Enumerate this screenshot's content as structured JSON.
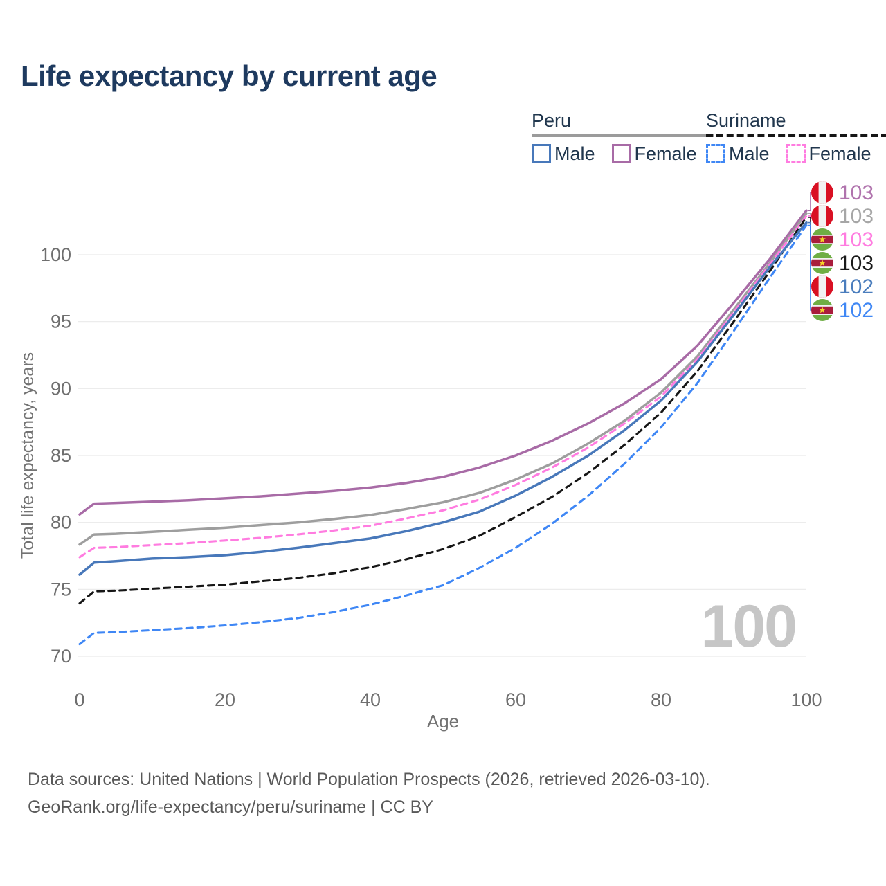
{
  "title": "Life expectancy by current age",
  "legend": {
    "groups": [
      {
        "label": "Peru",
        "underline_color": "#9b9b9b",
        "underline_style": "solid",
        "items": [
          {
            "label": "Male",
            "color": "#4878ba",
            "style": "solid"
          },
          {
            "label": "Female",
            "color": "#a86ba6",
            "style": "solid"
          }
        ]
      },
      {
        "label": "Suriname",
        "underline_color": "#161616",
        "underline_style": "dashed",
        "items": [
          {
            "label": "Male",
            "color": "#3f87f5",
            "style": "dashed"
          },
          {
            "label": "Female",
            "color": "#ff7ce0",
            "style": "dashed"
          }
        ]
      }
    ]
  },
  "watermark": {
    "value": "100",
    "color": "#c6c6c6"
  },
  "footer": {
    "line1": "Data sources: United Nations | World Population Prospects (2026, retrieved 2026-03-10).",
    "line2": "GeoRank.org/life-expectancy/peru/suriname | CC BY"
  },
  "chart_data": {
    "type": "line",
    "title": "Life expectancy by current age",
    "xlabel": "Age",
    "ylabel": "Total life expectancy, years",
    "xlim": [
      0,
      100
    ],
    "ylim": [
      70,
      103.5
    ],
    "xticks": [
      0,
      20,
      40,
      60,
      80,
      100
    ],
    "yticks": [
      70,
      75,
      80,
      85,
      90,
      95,
      100
    ],
    "grid": true,
    "legend_position": "top-right",
    "x": [
      0,
      2,
      5,
      10,
      15,
      20,
      25,
      30,
      35,
      40,
      45,
      50,
      55,
      60,
      65,
      70,
      75,
      80,
      85,
      90,
      95,
      100
    ],
    "series": [
      {
        "name": "Peru Female",
        "country": "Peru",
        "sex": "Female",
        "flag": "peru",
        "style": "solid",
        "color": "#a86ba6",
        "end_label": "103",
        "label_color": "#b073ad",
        "values": [
          80.6,
          81.4,
          81.45,
          81.55,
          81.65,
          81.8,
          81.95,
          82.15,
          82.35,
          82.6,
          82.95,
          83.4,
          84.1,
          85.0,
          86.1,
          87.4,
          88.9,
          90.7,
          93.2,
          96.4,
          99.7,
          103.3
        ]
      },
      {
        "name": "Peru",
        "country": "Peru",
        "sex": "Both",
        "flag": "peru",
        "style": "solid",
        "color": "#9e9e9e",
        "end_label": "103",
        "label_color": "#a6a6a6",
        "values": [
          78.35,
          79.1,
          79.15,
          79.3,
          79.45,
          79.6,
          79.8,
          80.0,
          80.25,
          80.55,
          81.0,
          81.5,
          82.2,
          83.2,
          84.4,
          85.9,
          87.6,
          89.7,
          92.4,
          95.9,
          99.4,
          103.1
        ]
      },
      {
        "name": "Suriname Female",
        "country": "Suriname",
        "sex": "Female",
        "flag": "suriname",
        "style": "dashed",
        "color": "#ff7ce0",
        "end_label": "103",
        "label_color": "#ff7ce0",
        "values": [
          77.4,
          78.1,
          78.15,
          78.3,
          78.45,
          78.65,
          78.85,
          79.1,
          79.4,
          79.75,
          80.3,
          80.9,
          81.7,
          82.8,
          84.1,
          85.6,
          87.4,
          89.4,
          92.2,
          95.7,
          99.3,
          102.9
        ]
      },
      {
        "name": "Suriname",
        "country": "Suriname",
        "sex": "Both",
        "flag": "suriname",
        "style": "dashed",
        "color": "#161616",
        "end_label": "103",
        "label_color": "#1a1a1a",
        "values": [
          73.95,
          74.85,
          74.9,
          75.05,
          75.2,
          75.35,
          75.6,
          75.85,
          76.2,
          76.65,
          77.25,
          78.0,
          79.0,
          80.4,
          81.9,
          83.7,
          85.8,
          88.2,
          91.3,
          95.0,
          98.8,
          102.8
        ]
      },
      {
        "name": "Peru Male",
        "country": "Peru",
        "sex": "Male",
        "flag": "peru",
        "style": "solid",
        "color": "#4878ba",
        "end_label": "102",
        "label_color": "#4a7dbd",
        "values": [
          76.1,
          77.0,
          77.1,
          77.3,
          77.4,
          77.55,
          77.8,
          78.1,
          78.45,
          78.8,
          79.35,
          80.0,
          80.8,
          82.0,
          83.4,
          85.0,
          86.9,
          89.1,
          92.0,
          95.5,
          99.1,
          102.4
        ]
      },
      {
        "name": "Suriname Male",
        "country": "Suriname",
        "sex": "Male",
        "flag": "suriname",
        "style": "dashed",
        "color": "#3f87f5",
        "end_label": "102",
        "label_color": "#3f87f5",
        "values": [
          70.9,
          71.75,
          71.8,
          71.95,
          72.1,
          72.3,
          72.55,
          72.85,
          73.3,
          73.85,
          74.55,
          75.3,
          76.6,
          78.1,
          79.9,
          82.0,
          84.4,
          87.1,
          90.4,
          94.3,
          98.3,
          102.2
        ]
      }
    ],
    "flag_colors": {
      "peru_red": "#d91023",
      "peru_white": "#f2f2f2",
      "suriname_green": "#6fae44",
      "suriname_red": "#a91d3c",
      "suriname_white": "#f2f2f2",
      "suriname_star": "#f5d327"
    }
  }
}
